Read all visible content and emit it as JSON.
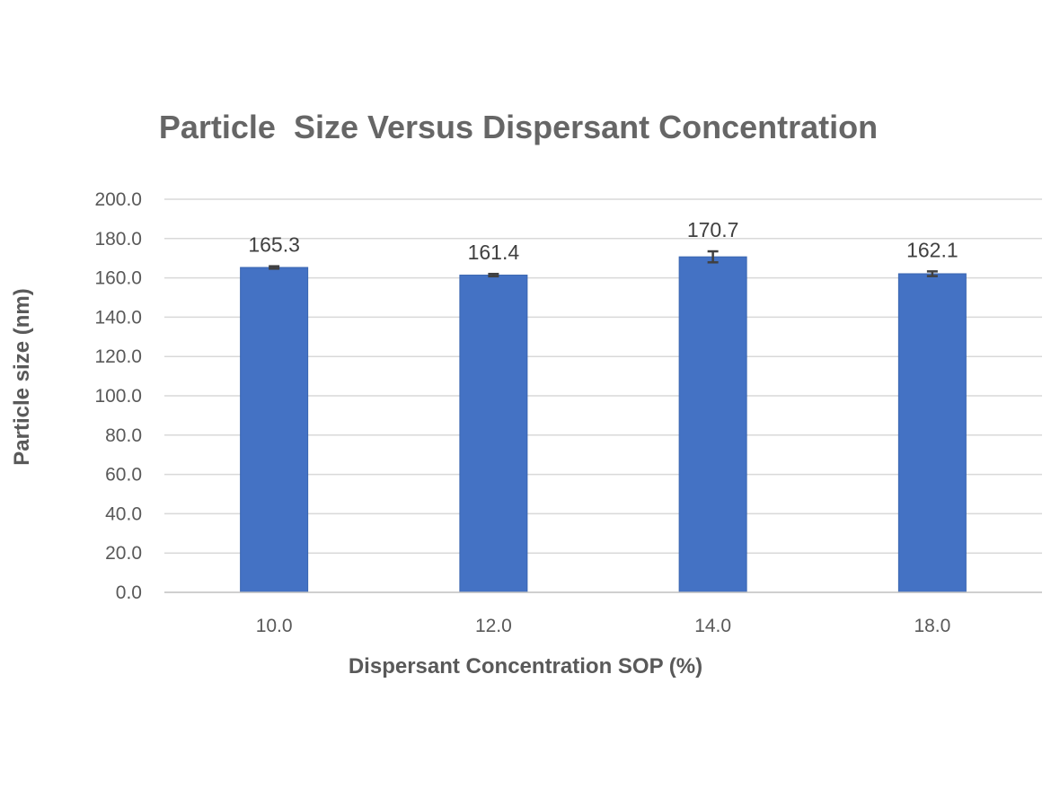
{
  "chart_data": {
    "type": "bar",
    "title": "Particle  Size Versus Dispersant Concentration",
    "xlabel": "Dispersant Concentration SOP (%)",
    "ylabel": "Particle size (nm)",
    "categories": [
      "10.0",
      "12.0",
      "14.0",
      "18.0"
    ],
    "values": [
      165.3,
      161.4,
      170.7,
      162.1
    ],
    "value_labels": [
      "165.3",
      "161.4",
      "170.7",
      "162.1"
    ],
    "errors": [
      0.6,
      0.6,
      2.8,
      1.2
    ],
    "ylim": [
      0,
      200
    ],
    "yticks": [
      0,
      20,
      40,
      60,
      80,
      100,
      120,
      140,
      160,
      180,
      200
    ],
    "ytick_labels": [
      "0.0",
      "20.0",
      "40.0",
      "60.0",
      "80.0",
      "100.0",
      "120.0",
      "140.0",
      "160.0",
      "180.0",
      "200.0"
    ],
    "grid": true,
    "legend": "none",
    "bar_color": "#4472c4"
  }
}
